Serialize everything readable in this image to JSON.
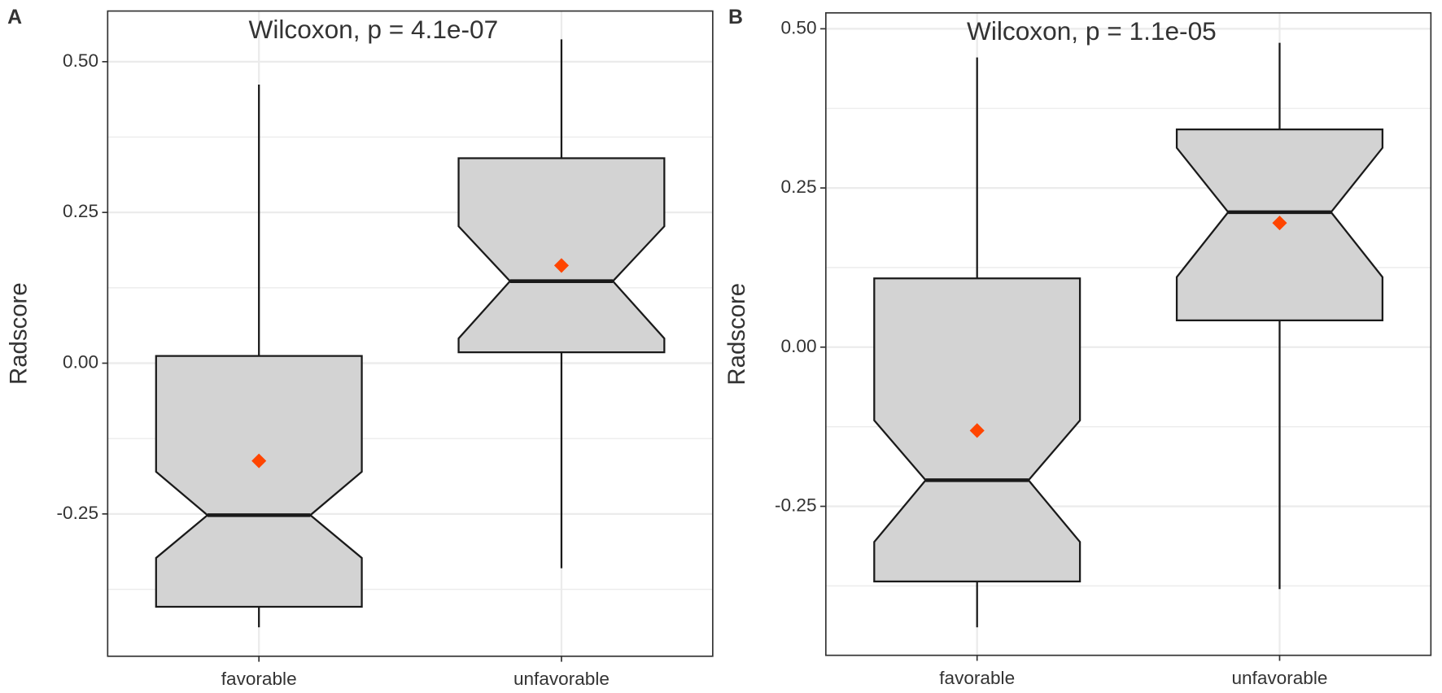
{
  "chart_data": [
    {
      "type": "box",
      "tag": "A",
      "title": "Wilcoxon, p = 4.1e-07",
      "y_label": "Radscore",
      "categories": [
        "favorable",
        "unfavorable"
      ],
      "box_color": "#d3d3d3",
      "mean_color": "#ff4500",
      "grid": true,
      "ylim": [
        -0.486,
        0.584
      ],
      "yticks": [
        {
          "value": -0.25,
          "label": "-0.25"
        },
        {
          "value": 0,
          "label": "0.00"
        },
        {
          "value": 0.25,
          "label": "0.25"
        },
        {
          "value": 0.5,
          "label": "0.50"
        }
      ],
      "boxes": [
        {
          "whisker_low": -0.438,
          "q1": -0.404,
          "notch_low": -0.323,
          "median": -0.252,
          "notch_high": -0.18,
          "q3": 0.012,
          "whisker_high": 0.462,
          "mean": -0.162
        },
        {
          "whisker_low": -0.34,
          "q1": 0.018,
          "notch_low": 0.041,
          "median": 0.136,
          "notch_high": 0.227,
          "q3": 0.34,
          "whisker_high": 0.537,
          "mean": 0.162
        }
      ]
    },
    {
      "type": "box",
      "tag": "B",
      "title": "Wilcoxon, p = 1.1e-05",
      "y_label": "Radscore",
      "categories": [
        "favorable",
        "unfavorable"
      ],
      "box_color": "#d3d3d3",
      "mean_color": "#ff4500",
      "grid": true,
      "ylim": [
        -0.484,
        0.525
      ],
      "yticks": [
        {
          "value": -0.25,
          "label": "-0.25"
        },
        {
          "value": 0,
          "label": "0.00"
        },
        {
          "value": 0.25,
          "label": "0.25"
        },
        {
          "value": 0.5,
          "label": "0.50"
        }
      ],
      "boxes": [
        {
          "whisker_low": -0.44,
          "q1": -0.368,
          "notch_low": -0.306,
          "median": -0.209,
          "notch_high": -0.115,
          "q3": 0.108,
          "whisker_high": 0.455,
          "mean": -0.131
        },
        {
          "whisker_low": -0.38,
          "q1": 0.042,
          "notch_low": 0.11,
          "median": 0.212,
          "notch_high": 0.313,
          "q3": 0.342,
          "whisker_high": 0.478,
          "mean": 0.195
        }
      ]
    }
  ]
}
